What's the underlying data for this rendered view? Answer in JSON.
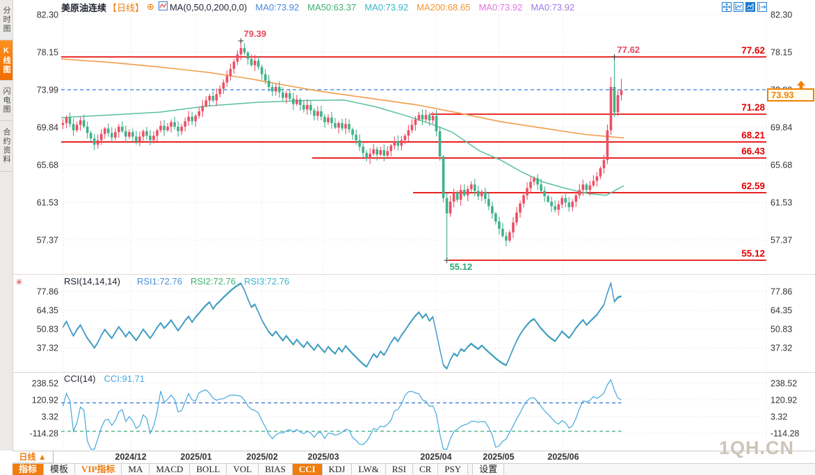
{
  "window": {
    "watermark": "1QH.CN"
  },
  "colors": {
    "up": "#ed4f63",
    "down": "#3fb28b",
    "level_line": "#e60000",
    "ma50": "#57c19e",
    "ma200": "#f2a254",
    "close_dash": "#2e7de2",
    "rsi1": "#4a8fd9",
    "rsi2": "#3cb371",
    "rsi3": "#2fb7cf",
    "cci_line": "#45a8dd",
    "cci_upper": "#2e6fd4",
    "cci_lower": "#3aab7e",
    "grid": "#dedede",
    "axis_text": "#333333",
    "accent_orange": "#f07d0e",
    "annotation_red": "#e5485e",
    "annotation_green": "#2aa876"
  },
  "sidebar": {
    "tabs": [
      {
        "label": "分时图",
        "active": false
      },
      {
        "label": "K线图",
        "active": true
      },
      {
        "label": "闪电图",
        "active": false
      },
      {
        "label": "合约资料",
        "active": false
      }
    ]
  },
  "header": {
    "symbol": "美原油连续",
    "period": "【日线】",
    "plus_icon": "⊕",
    "formula": "MA(0,50,0,200,0,0)",
    "ma_values": [
      {
        "label": "MA0:73.92",
        "color": "#4b86dc"
      },
      {
        "label": "MA50:63.37",
        "color": "#3fae75"
      },
      {
        "label": "MA0:73.92",
        "color": "#35b6c8"
      },
      {
        "label": "MA200:68.65",
        "color": "#ef9430"
      },
      {
        "label": "MA0:73.92",
        "color": "#e173dc"
      },
      {
        "label": "MA0:73.92",
        "color": "#9b7ae4"
      }
    ],
    "window_icons": [
      "pan-icon",
      "axis-scale-icon",
      "axis-scale-right-icon",
      "exit-chart-icon"
    ]
  },
  "price_tag": {
    "value": "73.93"
  },
  "rsi_panel": {
    "title": "RSI(14,14,14)",
    "values": [
      {
        "label": "RSI1:72.76",
        "color": "#4a8fd9"
      },
      {
        "label": "RSI2:72.76",
        "color": "#3cb371"
      },
      {
        "label": "RSI3:72.76",
        "color": "#2fb7cf"
      }
    ],
    "y_ticks": [
      "77.86",
      "64.35",
      "50.83",
      "37.32"
    ]
  },
  "cci_panel": {
    "title": "CCI(14)",
    "value_label": "CCI:91.71",
    "y_ticks": [
      "238.52",
      "120.92",
      "3.32",
      "-114.28"
    ]
  },
  "xaxis": {
    "period_button": "日线 ▲",
    "dates": [
      "2024/12",
      "2025/01",
      "2025/02",
      "2025/03",
      "2025/04",
      "2025/05",
      "2025/06"
    ]
  },
  "toolbar": {
    "items": [
      {
        "label": "指标",
        "style": "active"
      },
      {
        "label": "模板",
        "style": ""
      },
      {
        "label": "VIP指标",
        "style": "vip"
      },
      {
        "label": "MA",
        "style": ""
      },
      {
        "label": "MACD",
        "style": ""
      },
      {
        "label": "BOLL",
        "style": ""
      },
      {
        "label": "VOL",
        "style": ""
      },
      {
        "label": "BIAS",
        "style": ""
      },
      {
        "label": "CCI",
        "style": "active"
      },
      {
        "label": "KDJ",
        "style": ""
      },
      {
        "label": "LW&",
        "style": ""
      },
      {
        "label": "RSI",
        "style": ""
      },
      {
        "label": "CR",
        "style": ""
      },
      {
        "label": "PSY",
        "style": ""
      },
      {
        "label": "设置",
        "style": "last"
      }
    ]
  },
  "chart_data": {
    "type": "candlestick",
    "title": "美原油连续 日线 (US Crude Oil Continuous, Daily)",
    "y_ticks": [
      82.3,
      78.15,
      73.99,
      69.84,
      65.68,
      61.53,
      57.37
    ],
    "last_close": 73.93,
    "dashed_close_level": 73.99,
    "levels": [
      {
        "value": 77.62,
        "x_start": 88
      },
      {
        "value": 71.28,
        "x_start": 619
      },
      {
        "value": 68.21,
        "x_start": 88
      },
      {
        "value": 66.43,
        "x_start": 449
      },
      {
        "value": 62.59,
        "x_start": 594
      },
      {
        "value": 55.12,
        "x_start": 645
      }
    ],
    "annotations": [
      {
        "text": "79.39",
        "type": "peak",
        "candle_index": 51,
        "color": "#e5485e"
      },
      {
        "text": "77.62",
        "type": "peak",
        "candle_index": 158,
        "color": "#e5485e"
      },
      {
        "text": "55.12",
        "type": "trough",
        "candle_index": 110,
        "color": "#2aa876"
      }
    ],
    "warmup_closes": [
      70.0,
      69.6,
      70.2,
      69.8,
      70.4,
      69.9,
      70.5,
      70.0,
      69.4,
      69.9,
      70.4,
      69.8,
      70.3,
      69.8,
      70.1
    ],
    "closes": [
      70.3,
      70.9,
      70.2,
      69.5,
      70.1,
      70.6,
      69.9,
      69.2,
      68.6,
      67.9,
      68.4,
      69.1,
      69.7,
      69.2,
      68.7,
      69.3,
      69.9,
      69.4,
      68.8,
      69.3,
      68.8,
      68.3,
      68.8,
      69.4,
      68.9,
      68.4,
      68.9,
      69.5,
      70.0,
      69.5,
      69.9,
      70.4,
      69.9,
      69.4,
      69.9,
      70.5,
      71.0,
      70.5,
      71.1,
      71.6,
      72.2,
      72.8,
      73.3,
      72.8,
      73.5,
      74.1,
      74.8,
      75.5,
      76.3,
      77.1,
      77.9,
      78.6,
      78.1,
      77.4,
      76.7,
      77.2,
      76.5,
      75.7,
      75.0,
      74.3,
      73.8,
      74.3,
      73.7,
      73.1,
      73.6,
      73.0,
      72.4,
      72.9,
      72.3,
      71.8,
      72.3,
      71.7,
      71.1,
      71.6,
      71.0,
      70.4,
      70.9,
      70.3,
      69.8,
      70.3,
      69.7,
      70.2,
      69.6,
      69.0,
      68.4,
      67.7,
      67.0,
      66.4,
      66.9,
      67.4,
      66.8,
      67.3,
      66.7,
      67.2,
      67.8,
      68.3,
      67.8,
      68.4,
      68.9,
      69.5,
      70.1,
      70.7,
      71.2,
      70.7,
      71.2,
      70.6,
      71.1,
      69.4,
      66.6,
      62.0,
      60.3,
      61.6,
      62.6,
      61.8,
      62.9,
      62.3,
      63.0,
      63.5,
      62.8,
      62.2,
      62.7,
      61.9,
      61.1,
      60.3,
      59.4,
      58.6,
      57.8,
      57.3,
      58.2,
      59.3,
      60.4,
      61.4,
      62.3,
      63.1,
      63.8,
      64.2,
      63.5,
      62.8,
      62.2,
      61.6,
      61.1,
      60.7,
      61.3,
      62.0,
      61.5,
      61.0,
      61.6,
      62.3,
      62.9,
      63.5,
      62.9,
      63.4,
      63.9,
      64.4,
      65.3,
      66.2,
      69.5,
      74.3,
      71.5,
      73.4,
      73.93
    ],
    "special": {
      "highs": {
        "51": 79.39,
        "157": 75.4,
        "158": 77.62,
        "160": 75.2
      },
      "lows": {
        "110": 55.12
      }
    },
    "ma200_anchors": [
      [
        88,
        77.4
      ],
      [
        160,
        77.0
      ],
      [
        230,
        76.5
      ],
      [
        300,
        75.9
      ],
      [
        360,
        75.2
      ],
      [
        420,
        74.35
      ],
      [
        450,
        73.95
      ],
      [
        480,
        73.6
      ],
      [
        540,
        72.95
      ],
      [
        600,
        72.3
      ],
      [
        660,
        71.4
      ],
      [
        720,
        70.45
      ],
      [
        780,
        69.75
      ],
      [
        840,
        69.05
      ],
      [
        897,
        68.65
      ]
    ],
    "ma50_anchors": [
      [
        88,
        70.9
      ],
      [
        160,
        71.2
      ],
      [
        230,
        71.5
      ],
      [
        300,
        72.2
      ],
      [
        370,
        72.6
      ],
      [
        440,
        72.8
      ],
      [
        495,
        72.85
      ],
      [
        540,
        72.1
      ],
      [
        580,
        71.2
      ],
      [
        620,
        70.2
      ],
      [
        650,
        69.3
      ],
      [
        690,
        67.2
      ],
      [
        720,
        66.2
      ],
      [
        750,
        64.9
      ],
      [
        780,
        63.8
      ],
      [
        812,
        63.1
      ],
      [
        845,
        62.5
      ],
      [
        872,
        62.3
      ],
      [
        897,
        63.37
      ]
    ],
    "month_tick_x": [
      188,
      282,
      377,
      465,
      627,
      717,
      810
    ],
    "rsi": {
      "period": 14,
      "y_ticks": [
        77.86,
        64.35,
        50.83,
        37.32
      ],
      "last": 72.76
    },
    "cci": {
      "period": 14,
      "y_ticks": [
        238.52,
        120.92,
        3.32,
        -114.28
      ],
      "upper": 100,
      "lower": -100,
      "last": 91.71
    }
  }
}
